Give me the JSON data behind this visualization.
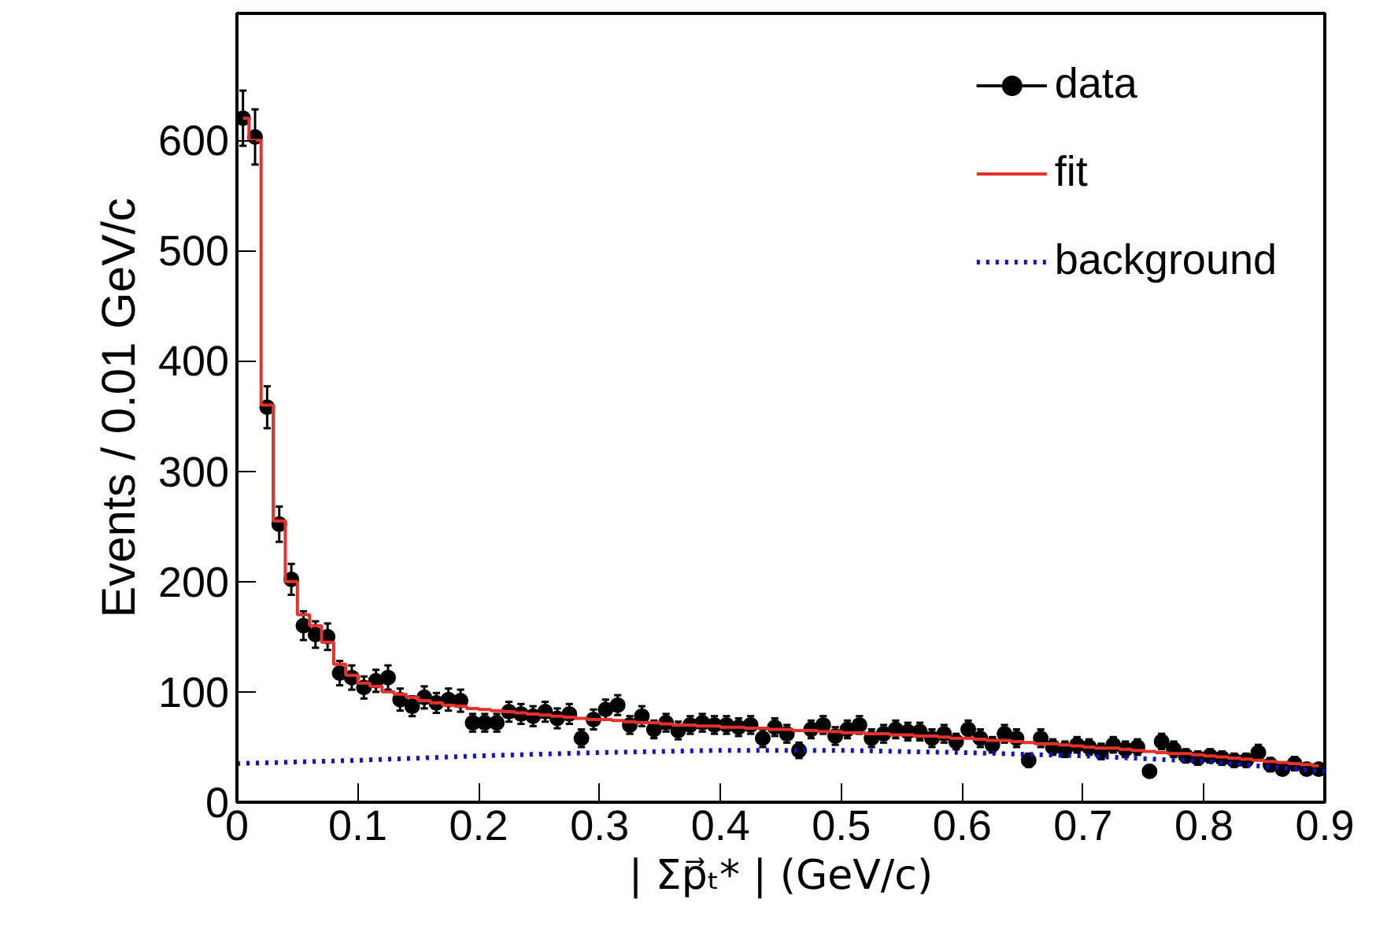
{
  "chart_data": {
    "type": "scatter",
    "xlabel": "| Σp⃗ₜ* | (GeV/c)",
    "ylabel": "Events / 0.01 GeV/c",
    "xlim": [
      0,
      0.9
    ],
    "ylim": [
      0,
      715
    ],
    "xticks": [
      0,
      0.1,
      0.2,
      0.3,
      0.4,
      0.5,
      0.6,
      0.7,
      0.8,
      0.9
    ],
    "yticks": [
      0,
      100,
      200,
      300,
      400,
      500,
      600
    ],
    "legend": "top right",
    "grid": false,
    "series": [
      {
        "name": "data",
        "marker": "circle",
        "color": "#000000",
        "x": [
          0.005,
          0.015,
          0.025,
          0.035,
          0.045,
          0.055,
          0.065,
          0.075,
          0.085,
          0.095,
          0.105,
          0.115,
          0.125,
          0.135,
          0.145,
          0.155,
          0.165,
          0.175,
          0.185,
          0.195,
          0.205,
          0.215,
          0.225,
          0.235,
          0.245,
          0.255,
          0.265,
          0.275,
          0.285,
          0.295,
          0.305,
          0.315,
          0.325,
          0.335,
          0.345,
          0.355,
          0.365,
          0.375,
          0.385,
          0.395,
          0.405,
          0.415,
          0.425,
          0.435,
          0.445,
          0.455,
          0.465,
          0.475,
          0.485,
          0.495,
          0.505,
          0.515,
          0.525,
          0.535,
          0.545,
          0.555,
          0.565,
          0.575,
          0.585,
          0.595,
          0.605,
          0.615,
          0.625,
          0.635,
          0.645,
          0.655,
          0.665,
          0.675,
          0.685,
          0.695,
          0.705,
          0.715,
          0.725,
          0.735,
          0.745,
          0.755,
          0.765,
          0.775,
          0.785,
          0.795,
          0.805,
          0.815,
          0.825,
          0.835,
          0.845,
          0.855,
          0.865,
          0.875,
          0.885,
          0.895
        ],
        "values": [
          620,
          603,
          358,
          252,
          202,
          160,
          152,
          150,
          117,
          113,
          104,
          110,
          113,
          93,
          87,
          95,
          90,
          93,
          92,
          72,
          72,
          72,
          82,
          80,
          78,
          82,
          76,
          80,
          58,
          75,
          84,
          88,
          70,
          78,
          66,
          72,
          65,
          70,
          72,
          70,
          70,
          68,
          70,
          58,
          68,
          62,
          47,
          66,
          70,
          60,
          66,
          70,
          58,
          62,
          66,
          64,
          64,
          58,
          62,
          55,
          66,
          58,
          52,
          62,
          58,
          38,
          58,
          50,
          48,
          52,
          50,
          46,
          52,
          48,
          50,
          28,
          55,
          48,
          42,
          40,
          42,
          40,
          38,
          38,
          45,
          34,
          30,
          35,
          30,
          30
        ],
        "errors": [
          25,
          25,
          19,
          16,
          14,
          13,
          12,
          12,
          11,
          11,
          10,
          10,
          11,
          10,
          9,
          10,
          9,
          10,
          10,
          8,
          8,
          8,
          9,
          9,
          9,
          9,
          9,
          9,
          8,
          9,
          9,
          9,
          8,
          9,
          8,
          8,
          8,
          8,
          8,
          8,
          8,
          8,
          8,
          8,
          8,
          8,
          7,
          8,
          8,
          8,
          8,
          8,
          8,
          8,
          8,
          8,
          8,
          8,
          8,
          7,
          8,
          8,
          7,
          8,
          8,
          6,
          8,
          7,
          7,
          7,
          7,
          7,
          7,
          7,
          7,
          5,
          7,
          7,
          6,
          6,
          6,
          6,
          6,
          6,
          7,
          6,
          5,
          6,
          5,
          5
        ]
      },
      {
        "name": "fit",
        "type": "step",
        "color": "#e8302a",
        "line_style": "solid",
        "x": [
          0.005,
          0.015,
          0.025,
          0.035,
          0.045,
          0.055,
          0.065,
          0.075,
          0.085,
          0.095,
          0.105,
          0.115,
          0.125,
          0.135,
          0.145,
          0.155,
          0.165,
          0.175,
          0.185,
          0.195,
          0.205,
          0.215,
          0.225,
          0.235,
          0.245,
          0.255,
          0.265,
          0.275,
          0.285,
          0.295,
          0.305,
          0.315,
          0.325,
          0.335,
          0.345,
          0.355,
          0.365,
          0.375,
          0.385,
          0.395,
          0.405,
          0.415,
          0.425,
          0.435,
          0.445,
          0.455,
          0.465,
          0.475,
          0.485,
          0.495,
          0.505,
          0.515,
          0.525,
          0.535,
          0.545,
          0.555,
          0.565,
          0.575,
          0.585,
          0.595,
          0.605,
          0.615,
          0.625,
          0.635,
          0.645,
          0.655,
          0.665,
          0.675,
          0.685,
          0.695,
          0.705,
          0.715,
          0.725,
          0.735,
          0.745,
          0.755,
          0.765,
          0.775,
          0.785,
          0.795,
          0.805,
          0.815,
          0.825,
          0.835,
          0.845,
          0.855,
          0.865,
          0.875,
          0.885,
          0.895
        ],
        "values": [
          620,
          600,
          360,
          255,
          200,
          170,
          160,
          145,
          125,
          115,
          108,
          105,
          100,
          98,
          95,
          92,
          90,
          88,
          87,
          85,
          84,
          83,
          82,
          81,
          80,
          79,
          78,
          77,
          76,
          75,
          75,
          74,
          73,
          72,
          72,
          71,
          70,
          70,
          69,
          69,
          68,
          68,
          67,
          67,
          66,
          66,
          65,
          65,
          64,
          64,
          63,
          63,
          62,
          62,
          61,
          61,
          60,
          60,
          59,
          58,
          58,
          57,
          56,
          56,
          55,
          54,
          53,
          53,
          52,
          51,
          50,
          49,
          49,
          48,
          47,
          46,
          45,
          44,
          44,
          43,
          42,
          41,
          40,
          39,
          38,
          37,
          36,
          35,
          34,
          33
        ]
      },
      {
        "name": "background",
        "type": "line",
        "color": "#1010d0",
        "line_style": "dotted",
        "x": [
          0,
          0.1,
          0.2,
          0.3,
          0.4,
          0.5,
          0.6,
          0.7,
          0.8,
          0.9
        ],
        "values": [
          35,
          38,
          42,
          45,
          47,
          47,
          45,
          42,
          37,
          28
        ]
      }
    ]
  }
}
